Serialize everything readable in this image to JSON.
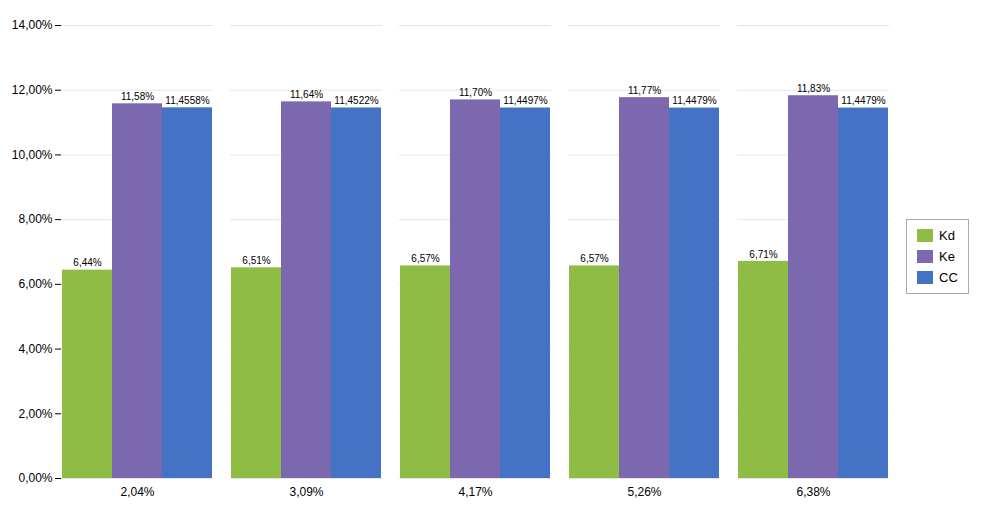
{
  "chart_data": {
    "type": "bar",
    "categories": [
      "2,04%",
      "3,09%",
      "4,17%",
      "5,26%",
      "6,38%"
    ],
    "series": [
      {
        "name": "Kd",
        "color": "#8fbc45",
        "values": [
          0.0644,
          0.0651,
          0.0657,
          0.0657,
          0.0671
        ],
        "value_labels": [
          "6,44%",
          "6,51%",
          "6,57%",
          "6,57%",
          "6,71%"
        ]
      },
      {
        "name": "Ke",
        "color": "#7b68ae",
        "values": [
          0.1158,
          0.1164,
          0.117,
          0.1177,
          0.1183
        ],
        "value_labels": [
          "11,58%",
          "11,64%",
          "11,70%",
          "11,77%",
          "11,83%"
        ]
      },
      {
        "name": "CC",
        "color": "#4472c4",
        "values": [
          0.114558,
          0.114522,
          0.114497,
          0.114479,
          0.114479
        ],
        "value_labels": [
          "11,4558%",
          "11,4522%",
          "11,4497%",
          "11,4479%",
          "11,4479%"
        ]
      }
    ],
    "ylim": [
      0,
      0.14
    ],
    "yticks": [
      {
        "value": 0,
        "label": "0,00%"
      },
      {
        "value": 0.02,
        "label": "2,00%"
      },
      {
        "value": 0.04,
        "label": "4,00%"
      },
      {
        "value": 0.06,
        "label": "6,00%"
      },
      {
        "value": 0.08,
        "label": "8,00%"
      },
      {
        "value": 0.1,
        "label": "10,00%"
      },
      {
        "value": 0.12,
        "label": "12,00%"
      },
      {
        "value": 0.14,
        "label": "14,00%"
      }
    ],
    "grid": true,
    "legend": "right",
    "data_labels": true
  }
}
